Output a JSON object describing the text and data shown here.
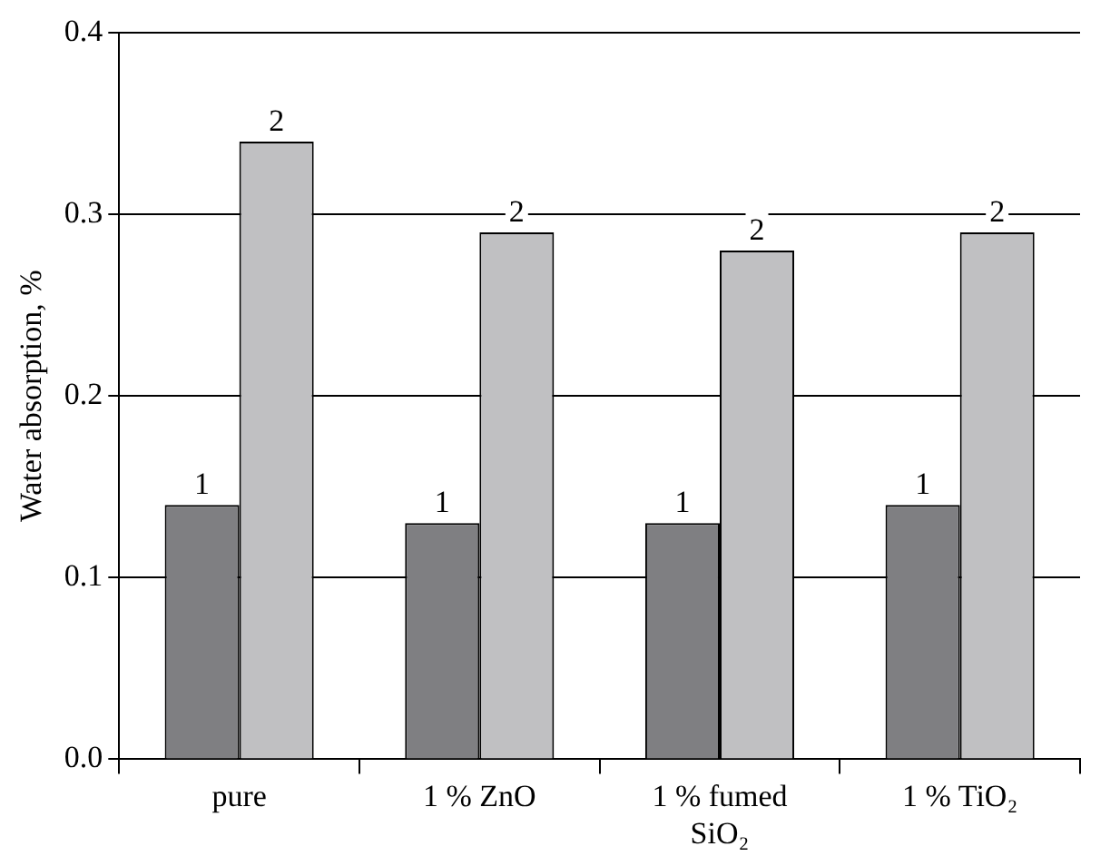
{
  "chart_data": {
    "type": "bar",
    "ylabel": "Water absorption, %",
    "categories": [
      "pure",
      "1 % ZnO",
      "1 % fumed SiO₂",
      "1 % TiO₂"
    ],
    "series": [
      {
        "name": "1",
        "color": "#7f7f82",
        "values": [
          0.14,
          0.13,
          0.13,
          0.14
        ]
      },
      {
        "name": "2",
        "color": "#c0c0c2",
        "values": [
          0.34,
          0.29,
          0.28,
          0.29
        ]
      }
    ],
    "ylim": [
      0,
      0.4
    ],
    "yticks": [
      {
        "value": 0,
        "label": "0.0"
      },
      {
        "value": 0.1,
        "label": "0.1"
      },
      {
        "value": 0.2,
        "label": "0.2"
      },
      {
        "value": 0.3,
        "label": "0.3"
      },
      {
        "value": 0.4,
        "label": "0.4"
      }
    ],
    "grid": "y",
    "legend": false
  }
}
